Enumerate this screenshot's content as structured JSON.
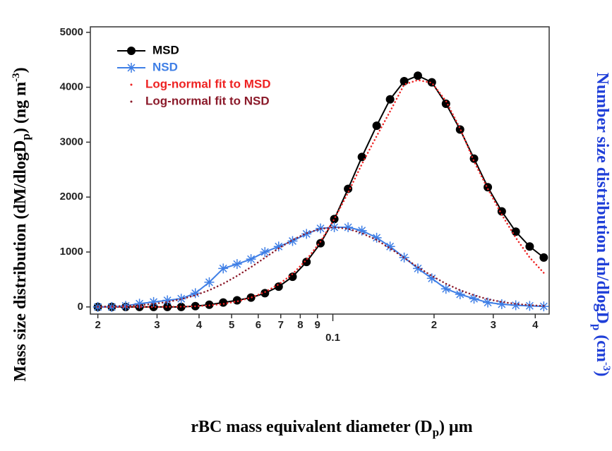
{
  "chart_data": {
    "type": "line",
    "xlabel": [
      "rBC mass equivalent diameter (D",
      "p",
      ") μm"
    ],
    "ylabel": [
      "Mass size distribution (dM/dlogD",
      "p",
      ") (ng m",
      "-3",
      ")"
    ],
    "y2label": [
      "Number size distribution dn/dlogD",
      "p",
      " (cm",
      "-3",
      ")"
    ],
    "y2color": "#1f3fd8",
    "xscale": "log",
    "xlim": [
      0.019,
      0.44
    ],
    "ylim": [
      -130,
      5100
    ],
    "xticks": [
      {
        "value": 0.02,
        "label": "2"
      },
      {
        "value": 0.03,
        "label": "3"
      },
      {
        "value": 0.04,
        "label": "4"
      },
      {
        "value": 0.05,
        "label": "5"
      },
      {
        "value": 0.06,
        "label": "6"
      },
      {
        "value": 0.07,
        "label": "7"
      },
      {
        "value": 0.08,
        "label": "8"
      },
      {
        "value": 0.09,
        "label": "9"
      },
      0.1,
      {
        "value": 0.2,
        "label": "2"
      },
      {
        "value": 0.3,
        "label": "3"
      },
      {
        "value": 0.4,
        "label": "4"
      }
    ],
    "yticks": [
      0,
      1000,
      2000,
      3000,
      4000,
      5000
    ],
    "legend": "upper left",
    "x": [
      0.02,
      0.022,
      0.0242,
      0.0266,
      0.0293,
      0.0322,
      0.0354,
      0.039,
      0.0429,
      0.0472,
      0.0519,
      0.0571,
      0.0628,
      0.069,
      0.0759,
      0.0835,
      0.0919,
      0.101,
      0.111,
      0.122,
      0.135,
      0.148,
      0.163,
      0.179,
      0.197,
      0.217,
      0.239,
      0.263,
      0.289,
      0.318,
      0.35,
      0.385,
      0.424
    ],
    "series": [
      {
        "name": "MSD",
        "color": "#000000",
        "marker": "circle",
        "style": "solid",
        "values": [
          0,
          0,
          0,
          0,
          0,
          0,
          0,
          15,
          40,
          80,
          120,
          170,
          250,
          370,
          550,
          820,
          1160,
          1600,
          2150,
          2730,
          3300,
          3780,
          4110,
          4210,
          4090,
          3700,
          3230,
          2700,
          2180,
          1740,
          1370,
          1100,
          900
        ]
      },
      {
        "name": "NSD",
        "color": "#3f7fe6",
        "marker": "star",
        "style": "solid",
        "values": [
          0,
          0,
          20,
          60,
          90,
          120,
          150,
          250,
          450,
          700,
          780,
          870,
          1000,
          1100,
          1200,
          1330,
          1430,
          1450,
          1450,
          1390,
          1260,
          1100,
          900,
          700,
          520,
          330,
          230,
          150,
          80,
          50,
          30,
          20,
          10
        ]
      },
      {
        "name": "Log-normal fit to MSD",
        "color": "#ee2222",
        "marker": "none",
        "style": "dotted",
        "values": [
          0,
          0,
          0,
          0,
          0,
          2,
          5,
          12,
          28,
          55,
          100,
          170,
          270,
          410,
          600,
          860,
          1190,
          1600,
          2080,
          2600,
          3110,
          3560,
          4050,
          4130,
          4080,
          3750,
          3250,
          2650,
          2150,
          1680,
          1260,
          900,
          620
        ]
      },
      {
        "name": "Log-normal fit to NSD",
        "color": "#8b1a2a",
        "marker": "none",
        "style": "dotted",
        "values": [
          6,
          11,
          19,
          33,
          56,
          91,
          141,
          212,
          305,
          423,
          565,
          725,
          896,
          1066,
          1220,
          1343,
          1422,
          1450,
          1422,
          1343,
          1220,
          1066,
          896,
          725,
          565,
          423,
          305,
          212,
          141,
          91,
          56,
          33,
          19
        ]
      }
    ]
  }
}
